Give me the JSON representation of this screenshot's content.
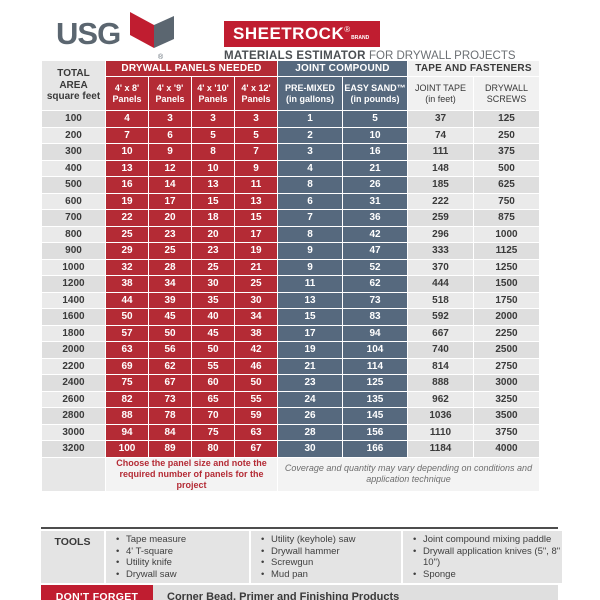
{
  "brand": {
    "logo_text": "USG",
    "product": "SHEETROCK",
    "registered": "®",
    "brand_word": "BRAND",
    "subtitle_bold": "MATERIALS ESTIMATOR",
    "subtitle_rest": " FOR DRYWALL PROJECTS"
  },
  "colors": {
    "table_red": "#b42b35",
    "banner_red": "#c01d30",
    "slate_blue": "#56697e",
    "logo_slate": "#5b6670",
    "row_gray": "#dedede",
    "row_gray_alt": "#eaeaea"
  },
  "table": {
    "area_header": {
      "line1": "TOTAL",
      "line2": "AREA",
      "line3": "square feet"
    },
    "groups": [
      {
        "label": "DRYWALL PANELS NEEDED"
      },
      {
        "label": "JOINT COMPOUND"
      },
      {
        "label": "TAPE AND FASTENERS"
      }
    ],
    "subheaders": [
      {
        "line1": "4' x 8'",
        "line2": "Panels"
      },
      {
        "line1": "4' x '9'",
        "line2": "Panels"
      },
      {
        "line1": "4' x '10'",
        "line2": "Panels"
      },
      {
        "line1": "4' x 12'",
        "line2": "Panels"
      },
      {
        "line1": "PRE-MIXED",
        "line2": "(in gallons)"
      },
      {
        "line1": "EASY SAND™",
        "line2": "(in pounds)"
      },
      {
        "line1": "JOINT TAPE",
        "line2": "(in feet)"
      },
      {
        "line1": "DRYWALL",
        "line2": "SCREWS"
      }
    ],
    "columns": [
      "area_sq_ft",
      "panels_4x8",
      "panels_4x9",
      "panels_4x10",
      "panels_4x12",
      "premixed_gallons",
      "easy_sand_pounds",
      "joint_tape_feet",
      "drywall_screws"
    ],
    "rows": [
      [
        100,
        4,
        3,
        3,
        3,
        1,
        5,
        37,
        125
      ],
      [
        200,
        7,
        6,
        5,
        5,
        2,
        10,
        74,
        250
      ],
      [
        300,
        10,
        9,
        8,
        7,
        3,
        16,
        111,
        375
      ],
      [
        400,
        13,
        12,
        10,
        9,
        4,
        21,
        148,
        500
      ],
      [
        500,
        16,
        14,
        13,
        11,
        8,
        26,
        185,
        625
      ],
      [
        600,
        19,
        17,
        15,
        13,
        6,
        31,
        222,
        750
      ],
      [
        700,
        22,
        20,
        18,
        15,
        7,
        36,
        259,
        875
      ],
      [
        800,
        25,
        23,
        20,
        17,
        8,
        42,
        296,
        1000
      ],
      [
        900,
        29,
        25,
        23,
        19,
        9,
        47,
        333,
        1125
      ],
      [
        1000,
        32,
        28,
        25,
        21,
        9,
        52,
        370,
        1250
      ],
      [
        1200,
        38,
        34,
        30,
        25,
        11,
        62,
        444,
        1500
      ],
      [
        1400,
        44,
        39,
        35,
        30,
        13,
        73,
        518,
        1750
      ],
      [
        1600,
        50,
        45,
        40,
        34,
        15,
        83,
        592,
        2000
      ],
      [
        1800,
        57,
        50,
        45,
        38,
        17,
        94,
        667,
        2250
      ],
      [
        2000,
        63,
        56,
        50,
        42,
        19,
        104,
        740,
        2500
      ],
      [
        2200,
        69,
        62,
        55,
        46,
        21,
        114,
        814,
        2750
      ],
      [
        2400,
        75,
        67,
        60,
        50,
        23,
        125,
        888,
        3000
      ],
      [
        2600,
        82,
        73,
        65,
        55,
        24,
        135,
        962,
        3250
      ],
      [
        2800,
        88,
        78,
        70,
        59,
        26,
        145,
        1036,
        3500
      ],
      [
        3000,
        94,
        84,
        75,
        63,
        28,
        156,
        1110,
        3750
      ],
      [
        3200,
        100,
        89,
        80,
        67,
        30,
        166,
        1184,
        4000
      ]
    ],
    "notes": {
      "panels_note": "Choose the panel size and note the required number of panels for the project",
      "coverage_note": "Coverage and quantity may vary depending on conditions and application technique"
    }
  },
  "tools": {
    "label": "TOOLS",
    "columns": [
      [
        "Tape measure",
        "4' T-square",
        "Utility knife",
        "Drywall saw"
      ],
      [
        "Utility (keyhole) saw",
        "Drywall hammer",
        "Screwgun",
        "Mud pan"
      ],
      [
        "Joint compound mixing paddle",
        "Drywall application knives (5\", 8\" 10\")",
        "Sponge"
      ]
    ]
  },
  "footer": {
    "badge": "DON'T FORGET",
    "text": "Corner Bead, Primer and Finishing Products"
  }
}
